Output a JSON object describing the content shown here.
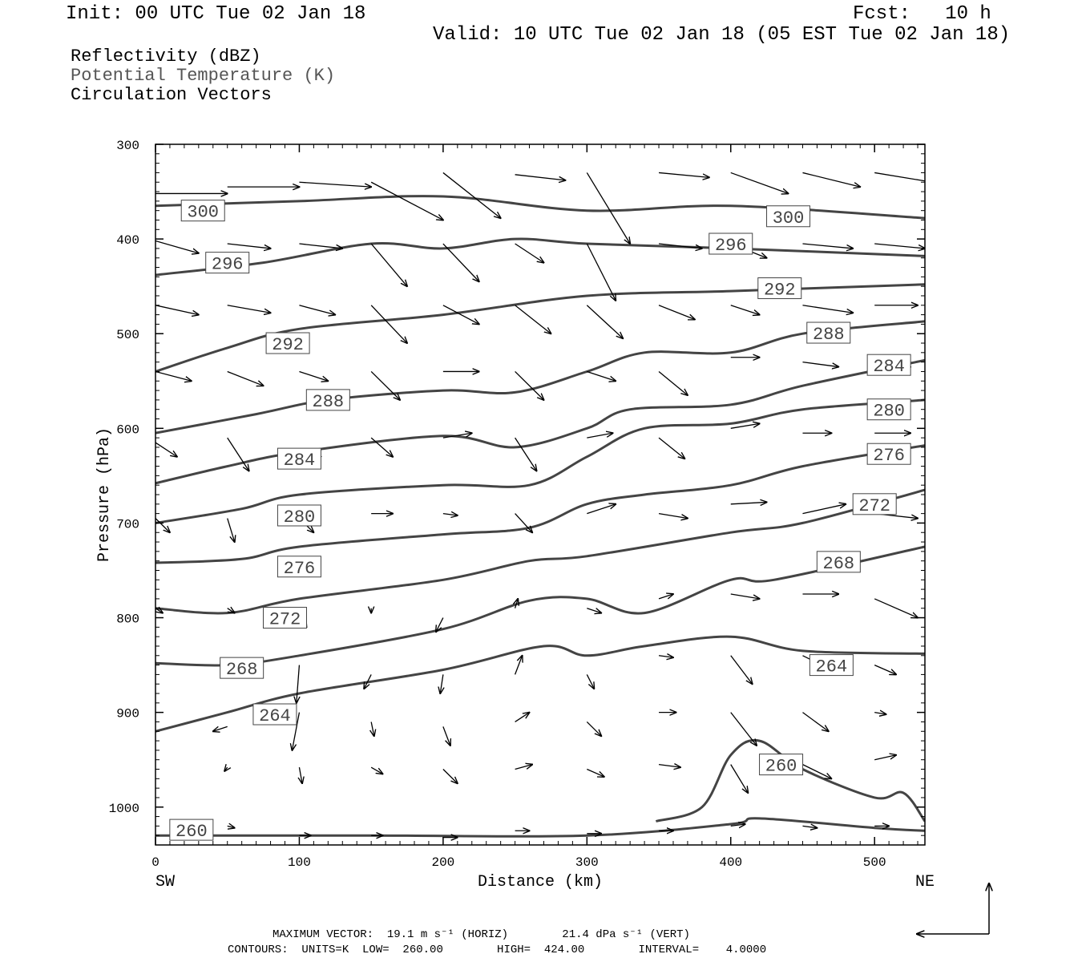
{
  "header": {
    "init": "Init: 00 UTC Tue 02 Jan 18",
    "fcst": "Fcst:   10 h",
    "valid": "Valid: 10 UTC Tue 02 Jan 18 (05 EST Tue 02 Jan 18)"
  },
  "legend": {
    "line1": "Reflectivity (dBZ)",
    "line2": "Potential Temperature (K)",
    "line3": "Circulation Vectors"
  },
  "footer": {
    "maxvec": "MAXIMUM VECTOR:  19.1 m s⁻¹ (HORIZ)        21.4 dPa s⁻¹ (VERT)",
    "contours": "CONTOURS:  UNITS=K  LOW=  260.00        HIGH=  424.00        INTERVAL=    4.0000"
  },
  "colors": {
    "contour": "#444444",
    "vector": "#000000",
    "frame": "#000000"
  },
  "chart_data": {
    "type": "line",
    "xlabel": "Distance (km)",
    "ylabel": "Pressure (hPa)",
    "xlim": [
      0,
      535
    ],
    "ylim": [
      300,
      1040
    ],
    "xticks": [
      0,
      100,
      200,
      300,
      400,
      500
    ],
    "yticks": [
      300,
      400,
      500,
      600,
      700,
      800,
      900,
      1000
    ],
    "y_inverted": true,
    "x_end_labels": {
      "left": "SW",
      "right": "NE"
    },
    "contour_interval": 4,
    "series": [
      {
        "level": 300,
        "x": [
          0,
          100,
          200,
          300,
          400,
          535
        ],
        "y": [
          365,
          360,
          355,
          370,
          365,
          378
        ]
      },
      {
        "level": 296,
        "x": [
          0,
          75,
          150,
          200,
          250,
          300,
          400,
          535
        ],
        "y": [
          438,
          425,
          405,
          410,
          400,
          405,
          410,
          418
        ]
      },
      {
        "level": 292,
        "x": [
          0,
          50,
          100,
          200,
          300,
          400,
          535
        ],
        "y": [
          540,
          515,
          495,
          480,
          460,
          455,
          448
        ]
      },
      {
        "level": 288,
        "x": [
          0,
          70,
          120,
          200,
          250,
          300,
          340,
          400,
          450,
          535
        ],
        "y": [
          605,
          585,
          570,
          560,
          562,
          540,
          520,
          520,
          500,
          487
        ]
      },
      {
        "level": 284,
        "x": [
          0,
          50,
          100,
          200,
          250,
          300,
          330,
          400,
          450,
          535
        ],
        "y": [
          658,
          640,
          625,
          608,
          620,
          600,
          580,
          575,
          555,
          528
        ]
      },
      {
        "level": 280,
        "x": [
          0,
          60,
          100,
          200,
          260,
          300,
          340,
          400,
          450,
          535
        ],
        "y": [
          700,
          685,
          670,
          660,
          660,
          630,
          600,
          595,
          580,
          570
        ]
      },
      {
        "level": 276,
        "x": [
          0,
          60,
          100,
          200,
          260,
          300,
          340,
          400,
          450,
          535
        ],
        "y": [
          742,
          738,
          725,
          712,
          705,
          680,
          670,
          660,
          640,
          618
        ]
      },
      {
        "level": 272,
        "x": [
          0,
          50,
          100,
          200,
          260,
          300,
          400,
          450,
          535
        ],
        "y": [
          790,
          795,
          780,
          760,
          740,
          735,
          710,
          700,
          665
        ]
      },
      {
        "level": 268,
        "x": [
          0,
          50,
          100,
          200,
          260,
          300,
          340,
          400,
          430,
          535
        ],
        "y": [
          848,
          850,
          840,
          812,
          782,
          780,
          795,
          760,
          760,
          725
        ]
      },
      {
        "level": 264,
        "x": [
          0,
          50,
          100,
          200,
          270,
          300,
          340,
          400,
          450,
          535
        ],
        "y": [
          920,
          900,
          880,
          855,
          830,
          840,
          830,
          820,
          835,
          838
        ]
      },
      {
        "level": 260,
        "x": [
          348,
          380,
          400,
          420,
          450,
          500,
          520,
          535
        ],
        "y": [
          1015,
          1000,
          945,
          930,
          960,
          990,
          985,
          1015
        ]
      },
      {
        "level": 260,
        "x": [
          0,
          150,
          300,
          400,
          420,
          500,
          535
        ],
        "y": [
          1030,
          1030,
          1030,
          1018,
          1012,
          1022,
          1025
        ]
      }
    ],
    "labels": [
      {
        "text": "300",
        "x": 33,
        "y": 370
      },
      {
        "text": "300",
        "x": 440,
        "y": 376
      },
      {
        "text": "296",
        "x": 50,
        "y": 425
      },
      {
        "text": "296",
        "x": 400,
        "y": 405
      },
      {
        "text": "292",
        "x": 92,
        "y": 510
      },
      {
        "text": "292",
        "x": 434,
        "y": 452
      },
      {
        "text": "288",
        "x": 120,
        "y": 570
      },
      {
        "text": "288",
        "x": 468,
        "y": 499
      },
      {
        "text": "284",
        "x": 100,
        "y": 632
      },
      {
        "text": "284",
        "x": 510,
        "y": 533
      },
      {
        "text": "280",
        "x": 100,
        "y": 692
      },
      {
        "text": "280",
        "x": 510,
        "y": 580
      },
      {
        "text": "276",
        "x": 100,
        "y": 746
      },
      {
        "text": "276",
        "x": 510,
        "y": 627
      },
      {
        "text": "272",
        "x": 90,
        "y": 800
      },
      {
        "text": "272",
        "x": 500,
        "y": 680
      },
      {
        "text": "268",
        "x": 60,
        "y": 853
      },
      {
        "text": "268",
        "x": 475,
        "y": 741
      },
      {
        "text": "264",
        "x": 83,
        "y": 902
      },
      {
        "text": "264",
        "x": 470,
        "y": 850
      },
      {
        "text": "260",
        "x": 25,
        "y": 1024
      },
      {
        "text": "260",
        "x": 435,
        "y": 955
      }
    ],
    "vectors": [
      [
        0,
        352,
        50,
        352
      ],
      [
        50,
        345,
        100,
        345
      ],
      [
        100,
        340,
        150,
        345
      ],
      [
        150,
        340,
        200,
        380
      ],
      [
        200,
        330,
        240,
        378
      ],
      [
        250,
        332,
        285,
        338
      ],
      [
        300,
        330,
        330,
        405
      ],
      [
        350,
        330,
        385,
        335
      ],
      [
        400,
        330,
        440,
        352
      ],
      [
        450,
        330,
        490,
        345
      ],
      [
        500,
        330,
        540,
        340
      ],
      [
        0,
        402,
        30,
        415
      ],
      [
        50,
        405,
        80,
        410
      ],
      [
        100,
        405,
        130,
        410
      ],
      [
        150,
        405,
        175,
        450
      ],
      [
        200,
        405,
        225,
        445
      ],
      [
        250,
        405,
        270,
        425
      ],
      [
        300,
        405,
        320,
        465
      ],
      [
        350,
        405,
        380,
        410
      ],
      [
        400,
        405,
        425,
        420
      ],
      [
        450,
        405,
        485,
        410
      ],
      [
        500,
        405,
        535,
        410
      ],
      [
        0,
        470,
        30,
        480
      ],
      [
        50,
        470,
        80,
        478
      ],
      [
        100,
        470,
        125,
        480
      ],
      [
        150,
        470,
        175,
        510
      ],
      [
        200,
        470,
        225,
        490
      ],
      [
        250,
        470,
        275,
        500
      ],
      [
        300,
        470,
        325,
        505
      ],
      [
        350,
        470,
        375,
        485
      ],
      [
        400,
        470,
        420,
        480
      ],
      [
        450,
        470,
        485,
        478
      ],
      [
        500,
        470,
        530,
        470
      ],
      [
        0,
        540,
        25,
        550
      ],
      [
        50,
        540,
        75,
        555
      ],
      [
        100,
        540,
        120,
        550
      ],
      [
        150,
        540,
        170,
        570
      ],
      [
        200,
        540,
        225,
        540
      ],
      [
        250,
        540,
        270,
        570
      ],
      [
        300,
        540,
        320,
        550
      ],
      [
        350,
        540,
        370,
        565
      ],
      [
        400,
        525,
        420,
        525
      ],
      [
        450,
        530,
        475,
        535
      ],
      [
        500,
        525,
        525,
        535
      ],
      [
        0,
        615,
        15,
        630
      ],
      [
        50,
        610,
        65,
        645
      ],
      [
        100,
        625,
        115,
        630
      ],
      [
        150,
        610,
        165,
        630
      ],
      [
        200,
        610,
        220,
        605
      ],
      [
        250,
        610,
        265,
        645
      ],
      [
        300,
        610,
        318,
        605
      ],
      [
        350,
        610,
        368,
        632
      ],
      [
        400,
        600,
        420,
        595
      ],
      [
        450,
        605,
        470,
        605
      ],
      [
        500,
        605,
        525,
        605
      ],
      [
        0,
        695,
        10,
        710
      ],
      [
        50,
        695,
        55,
        720
      ],
      [
        100,
        695,
        110,
        710
      ],
      [
        150,
        690,
        165,
        690
      ],
      [
        200,
        690,
        210,
        692
      ],
      [
        250,
        690,
        262,
        710
      ],
      [
        300,
        690,
        320,
        680
      ],
      [
        350,
        690,
        370,
        695
      ],
      [
        400,
        680,
        425,
        678
      ],
      [
        450,
        690,
        480,
        680
      ],
      [
        500,
        690,
        530,
        695
      ],
      [
        0,
        790,
        5,
        795
      ],
      [
        50,
        790,
        55,
        795
      ],
      [
        100,
        795,
        105,
        810
      ],
      [
        150,
        790,
        150,
        795
      ],
      [
        200,
        800,
        195,
        815
      ],
      [
        250,
        790,
        252,
        780
      ],
      [
        300,
        790,
        310,
        795
      ],
      [
        350,
        780,
        360,
        775
      ],
      [
        400,
        775,
        420,
        780
      ],
      [
        450,
        775,
        475,
        775
      ],
      [
        500,
        780,
        530,
        800
      ],
      [
        50,
        860,
        55,
        855
      ],
      [
        100,
        850,
        98,
        890
      ],
      [
        150,
        860,
        145,
        875
      ],
      [
        200,
        860,
        198,
        880
      ],
      [
        250,
        860,
        255,
        840
      ],
      [
        300,
        860,
        305,
        875
      ],
      [
        350,
        840,
        360,
        842
      ],
      [
        400,
        840,
        415,
        870
      ],
      [
        450,
        840,
        470,
        855
      ],
      [
        500,
        850,
        515,
        860
      ],
      [
        50,
        915,
        40,
        920
      ],
      [
        100,
        900,
        95,
        940
      ],
      [
        150,
        910,
        152,
        925
      ],
      [
        200,
        915,
        205,
        935
      ],
      [
        250,
        910,
        260,
        900
      ],
      [
        300,
        910,
        310,
        925
      ],
      [
        350,
        900,
        362,
        900
      ],
      [
        400,
        900,
        418,
        935
      ],
      [
        450,
        900,
        468,
        920
      ],
      [
        500,
        900,
        508,
        902
      ],
      [
        50,
        958,
        48,
        962
      ],
      [
        100,
        958,
        102,
        975
      ],
      [
        150,
        958,
        158,
        965
      ],
      [
        200,
        960,
        210,
        975
      ],
      [
        250,
        960,
        262,
        955
      ],
      [
        300,
        960,
        312,
        968
      ],
      [
        350,
        955,
        365,
        958
      ],
      [
        400,
        955,
        412,
        985
      ],
      [
        450,
        955,
        470,
        970
      ],
      [
        500,
        950,
        515,
        945
      ],
      [
        50,
        1020,
        55,
        1022
      ],
      [
        100,
        1030,
        108,
        1030
      ],
      [
        150,
        1030,
        158,
        1030
      ],
      [
        200,
        1032,
        210,
        1032
      ],
      [
        250,
        1025,
        260,
        1025
      ],
      [
        300,
        1028,
        310,
        1028
      ],
      [
        350,
        1025,
        360,
        1025
      ],
      [
        400,
        1020,
        410,
        1018
      ],
      [
        450,
        1020,
        460,
        1022
      ],
      [
        500,
        1020,
        510,
        1020
      ]
    ]
  }
}
